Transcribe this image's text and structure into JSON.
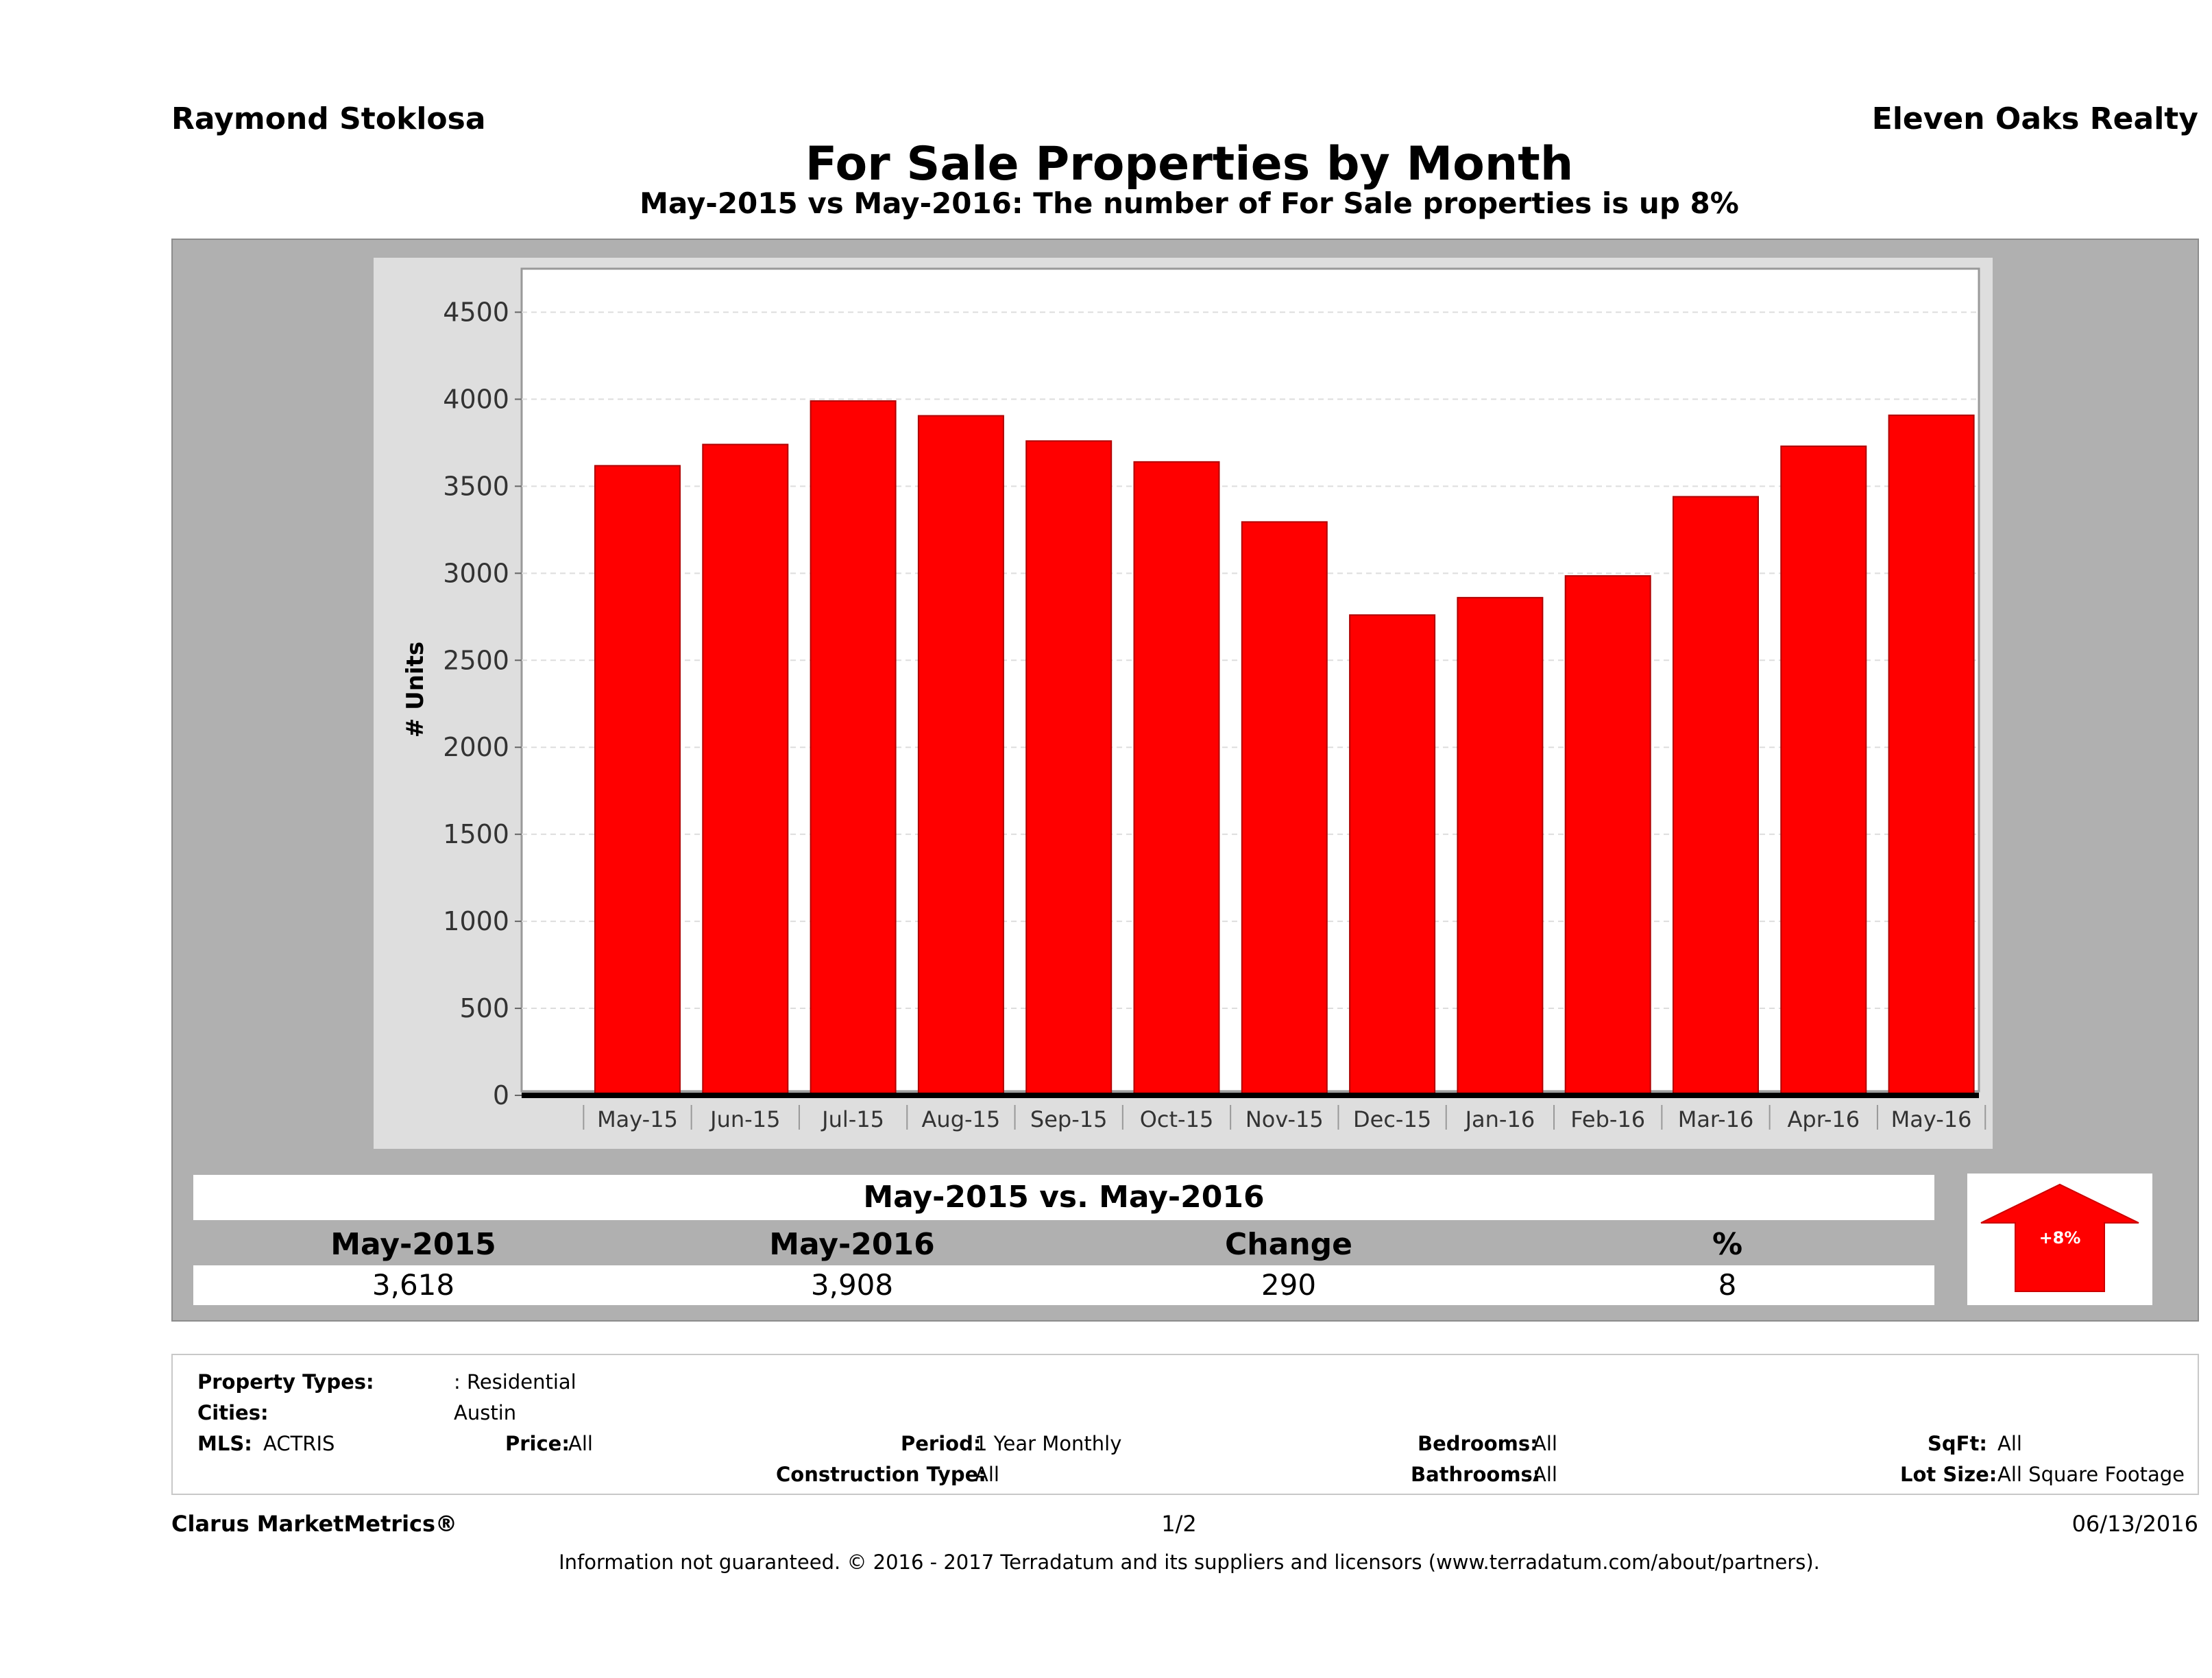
{
  "header": {
    "agent": "Raymond Stoklosa",
    "company": "Eleven Oaks Realty",
    "title": "For Sale Properties by Month",
    "subtitle": "May-2015 vs May-2016: The number of For Sale  properties is up 8%"
  },
  "chart_data": {
    "type": "bar",
    "title": "For Sale Properties by Month",
    "ylabel": "# Units",
    "xlabel": "",
    "ylim": [
      0,
      4750
    ],
    "yticks": [
      0,
      500,
      1000,
      1500,
      2000,
      2500,
      3000,
      3500,
      4000,
      4500
    ],
    "grid": true,
    "categories": [
      "May-15",
      "Jun-15",
      "Jul-15",
      "Aug-15",
      "Sep-15",
      "Oct-15",
      "Nov-15",
      "Dec-15",
      "Jan-16",
      "Feb-16",
      "Mar-16",
      "Apr-16",
      "May-16"
    ],
    "values": [
      3618,
      3740,
      3990,
      3905,
      3760,
      3640,
      3295,
      2760,
      2860,
      2985,
      3440,
      3730,
      3908
    ],
    "bar_color": "#ff0000"
  },
  "summary": {
    "heading": "May-2015 vs. May-2016",
    "columns": [
      {
        "label": "May-2015",
        "value": "3,618"
      },
      {
        "label": "May-2016",
        "value": "3,908"
      },
      {
        "label": "Change",
        "value": "290"
      },
      {
        "label": "%",
        "value": "8"
      }
    ],
    "badge": "+8%",
    "badge_color": "#ff0000"
  },
  "filters": {
    "property_types_label": "Property Types:",
    "property_types_value": ": Residential",
    "cities_label": "Cities:",
    "cities_value": "Austin",
    "mls_label": "MLS:",
    "mls_value": "ACTRIS",
    "price_label": "Price:",
    "price_value": "All",
    "period_label": "Period:",
    "period_value": "1 Year Monthly",
    "construction_label": "Construction Type:",
    "construction_value": "All",
    "bedrooms_label": "Bedrooms:",
    "bedrooms_value": "All",
    "bathrooms_label": "Bathrooms:",
    "bathrooms_value": "All",
    "sqft_label": "SqFt:",
    "sqft_value": "All",
    "lotsize_label": "Lot Size:",
    "lotsize_value": "All Square Footage"
  },
  "footer": {
    "brand": "Clarus MarketMetrics®",
    "page": "1/2",
    "date": "06/13/2016",
    "disclaimer": "Information not guaranteed. © 2016 - 2017 Terradatum and its suppliers and licensors (www.terradatum.com/about/partners)."
  }
}
